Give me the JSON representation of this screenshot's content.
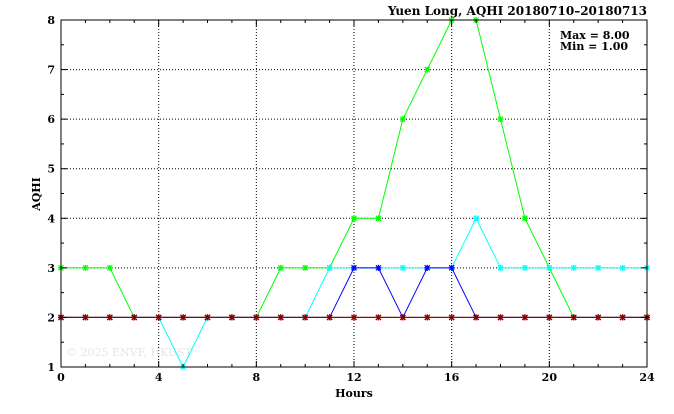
{
  "chart_data": {
    "type": "line",
    "title": "Yuen Long, AQHI 20180710–20180713",
    "xlabel": "Hours",
    "ylabel": "AQHI",
    "xlim": [
      0,
      24
    ],
    "ylim": [
      1,
      8
    ],
    "xticks": [
      "0",
      "4",
      "8",
      "12",
      "16",
      "20",
      "24"
    ],
    "yticks": [
      "1",
      "2",
      "3",
      "4",
      "5",
      "6",
      "7",
      "8"
    ],
    "grid": true,
    "annotations": [
      "Max = 8.00",
      "Min = 1.00"
    ],
    "watermark": "© 2025  ENVF, HKUST",
    "x": [
      0,
      1,
      2,
      3,
      4,
      5,
      6,
      7,
      8,
      9,
      10,
      11,
      12,
      13,
      14,
      15,
      16,
      17,
      18,
      19,
      20,
      21,
      22,
      23,
      24
    ],
    "series": [
      {
        "color": "#00ff00",
        "values": [
          3,
          3,
          3,
          2,
          2,
          2,
          2,
          2,
          2,
          3,
          3,
          3,
          4,
          4,
          6,
          7,
          8,
          8,
          6,
          4,
          3,
          2,
          2,
          2,
          2
        ]
      },
      {
        "color": "#00ffff",
        "values": [
          2,
          2,
          2,
          2,
          2,
          1,
          2,
          2,
          2,
          2,
          2,
          3,
          3,
          3,
          3,
          3,
          3,
          4,
          3,
          3,
          3,
          3,
          3,
          3,
          3
        ]
      },
      {
        "color": "#0000ff",
        "values": [
          2,
          2,
          2,
          2,
          2,
          2,
          2,
          2,
          2,
          2,
          2,
          2,
          3,
          3,
          2,
          3,
          3,
          2,
          2,
          2,
          2,
          2,
          2,
          2,
          2
        ]
      },
      {
        "color": "#ff0000",
        "values": [
          2,
          2,
          2,
          2,
          2,
          2,
          2,
          2,
          2,
          2,
          2,
          2,
          2,
          2,
          2,
          2,
          2,
          2,
          2,
          2,
          2,
          2,
          2,
          2,
          2
        ]
      },
      {
        "color": "#880000",
        "values": [
          2,
          2,
          2,
          2,
          2,
          2,
          2,
          2,
          2,
          2,
          2,
          2,
          2,
          2,
          2,
          2,
          2,
          2,
          2,
          2,
          2,
          2,
          2,
          2,
          2
        ]
      }
    ]
  }
}
